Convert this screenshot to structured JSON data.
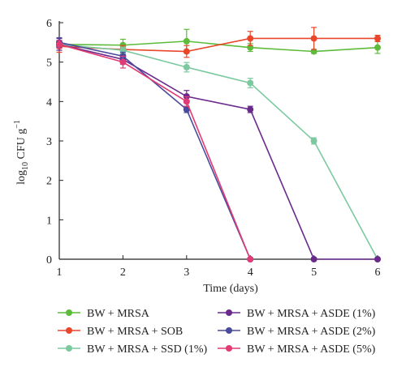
{
  "chart_data": {
    "type": "line",
    "title": "",
    "xlabel": "Time (days)",
    "ylabel_main": "log",
    "ylabel_sub": "10",
    "ylabel_rest": " CFU g",
    "ylabel_sup": "−1",
    "xlim": [
      1,
      6
    ],
    "ylim": [
      0,
      6
    ],
    "xticks": [
      "1",
      "2",
      "3",
      "4",
      "5",
      "6"
    ],
    "yticks": [
      "0",
      "1",
      "2",
      "3",
      "4",
      "5",
      "6"
    ],
    "grid": false,
    "legend_position": "bottom",
    "series": [
      {
        "name": "BW + MRSA",
        "color": "#5dbb3c",
        "x": [
          1,
          2,
          3,
          4,
          5,
          6
        ],
        "y": [
          5.45,
          5.43,
          5.53,
          5.37,
          5.27,
          5.37
        ],
        "err": [
          0.08,
          0.15,
          0.3,
          0.1,
          0.05,
          0.15
        ]
      },
      {
        "name": "BW + MRSA + SOB",
        "color": "#e8472b",
        "x": [
          1,
          2,
          3,
          4,
          5,
          6
        ],
        "y": [
          5.4,
          5.32,
          5.27,
          5.6,
          5.6,
          5.6
        ],
        "err": [
          0.15,
          0.1,
          0.15,
          0.18,
          0.28,
          0.08
        ]
      },
      {
        "name": "BW + MRSA + SSD (1%)",
        "color": "#7cc9a0",
        "x": [
          1,
          2,
          3,
          4,
          5,
          6
        ],
        "y": [
          5.45,
          5.3,
          4.87,
          4.47,
          3.0,
          0.0
        ],
        "err": [
          0.1,
          0.08,
          0.12,
          0.12,
          0.08,
          0.03
        ]
      },
      {
        "name": "BW + MRSA + ASDE (1%)",
        "color": "#6a2a8c",
        "x": [
          1,
          2,
          3,
          4,
          5,
          6
        ],
        "y": [
          5.45,
          5.07,
          4.13,
          3.8,
          0.0,
          0.0
        ],
        "err": [
          0.15,
          0.12,
          0.15,
          0.08,
          0.03,
          0.03
        ]
      },
      {
        "name": "BW + MRSA + ASDE (2%)",
        "color": "#4a4a9c",
        "x": [
          1,
          2,
          3,
          4
        ],
        "y": [
          5.5,
          5.15,
          3.8,
          0.0
        ],
        "err": [
          0.12,
          0.1,
          0.08,
          0.03
        ]
      },
      {
        "name": "BW + MRSA + ASDE (5%)",
        "color": "#e23a74",
        "x": [
          1,
          2,
          3,
          4
        ],
        "y": [
          5.45,
          5.0,
          4.0,
          0.0
        ],
        "err": [
          0.1,
          0.15,
          0.12,
          0.03
        ]
      }
    ]
  }
}
